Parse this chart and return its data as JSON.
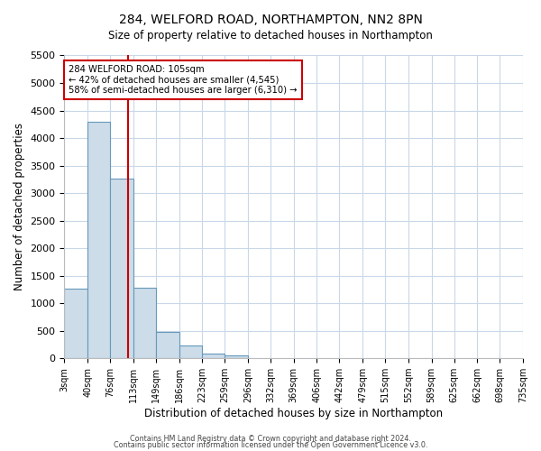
{
  "title": "284, WELFORD ROAD, NORTHAMPTON, NN2 8PN",
  "subtitle": "Size of property relative to detached houses in Northampton",
  "xlabel": "Distribution of detached houses by size in Northampton",
  "ylabel": "Number of detached properties",
  "bins": [
    3,
    40,
    76,
    113,
    149,
    186,
    223,
    259,
    296,
    332,
    369,
    406,
    442,
    479,
    515,
    552,
    589,
    625,
    662,
    698,
    735
  ],
  "counts": [
    1270,
    4300,
    3270,
    1280,
    480,
    230,
    90,
    60,
    0,
    0,
    0,
    0,
    0,
    0,
    0,
    0,
    0,
    0,
    0,
    0
  ],
  "bar_color": "#ccdce8",
  "bar_edge_color": "#6699bb",
  "vline_x": 105,
  "vline_color": "#cc0000",
  "annotation_line1": "284 WELFORD ROAD: 105sqm",
  "annotation_line2": "← 42% of detached houses are smaller (4,545)",
  "annotation_line3": "58% of semi-detached houses are larger (6,310) →",
  "annotation_box_color": "#ffffff",
  "annotation_box_edge_color": "#cc0000",
  "ylim": [
    0,
    5500
  ],
  "yticks": [
    0,
    500,
    1000,
    1500,
    2000,
    2500,
    3000,
    3500,
    4000,
    4500,
    5000,
    5500
  ],
  "xtick_labels": [
    "3sqm",
    "40sqm",
    "76sqm",
    "113sqm",
    "149sqm",
    "186sqm",
    "223sqm",
    "259sqm",
    "296sqm",
    "332sqm",
    "369sqm",
    "406sqm",
    "442sqm",
    "479sqm",
    "515sqm",
    "552sqm",
    "589sqm",
    "625sqm",
    "662sqm",
    "698sqm",
    "735sqm"
  ],
  "footnote1": "Contains HM Land Registry data © Crown copyright and database right 2024.",
  "footnote2": "Contains public sector information licensed under the Open Government Licence v3.0.",
  "background_color": "#ffffff",
  "grid_color": "#c8d8e8"
}
